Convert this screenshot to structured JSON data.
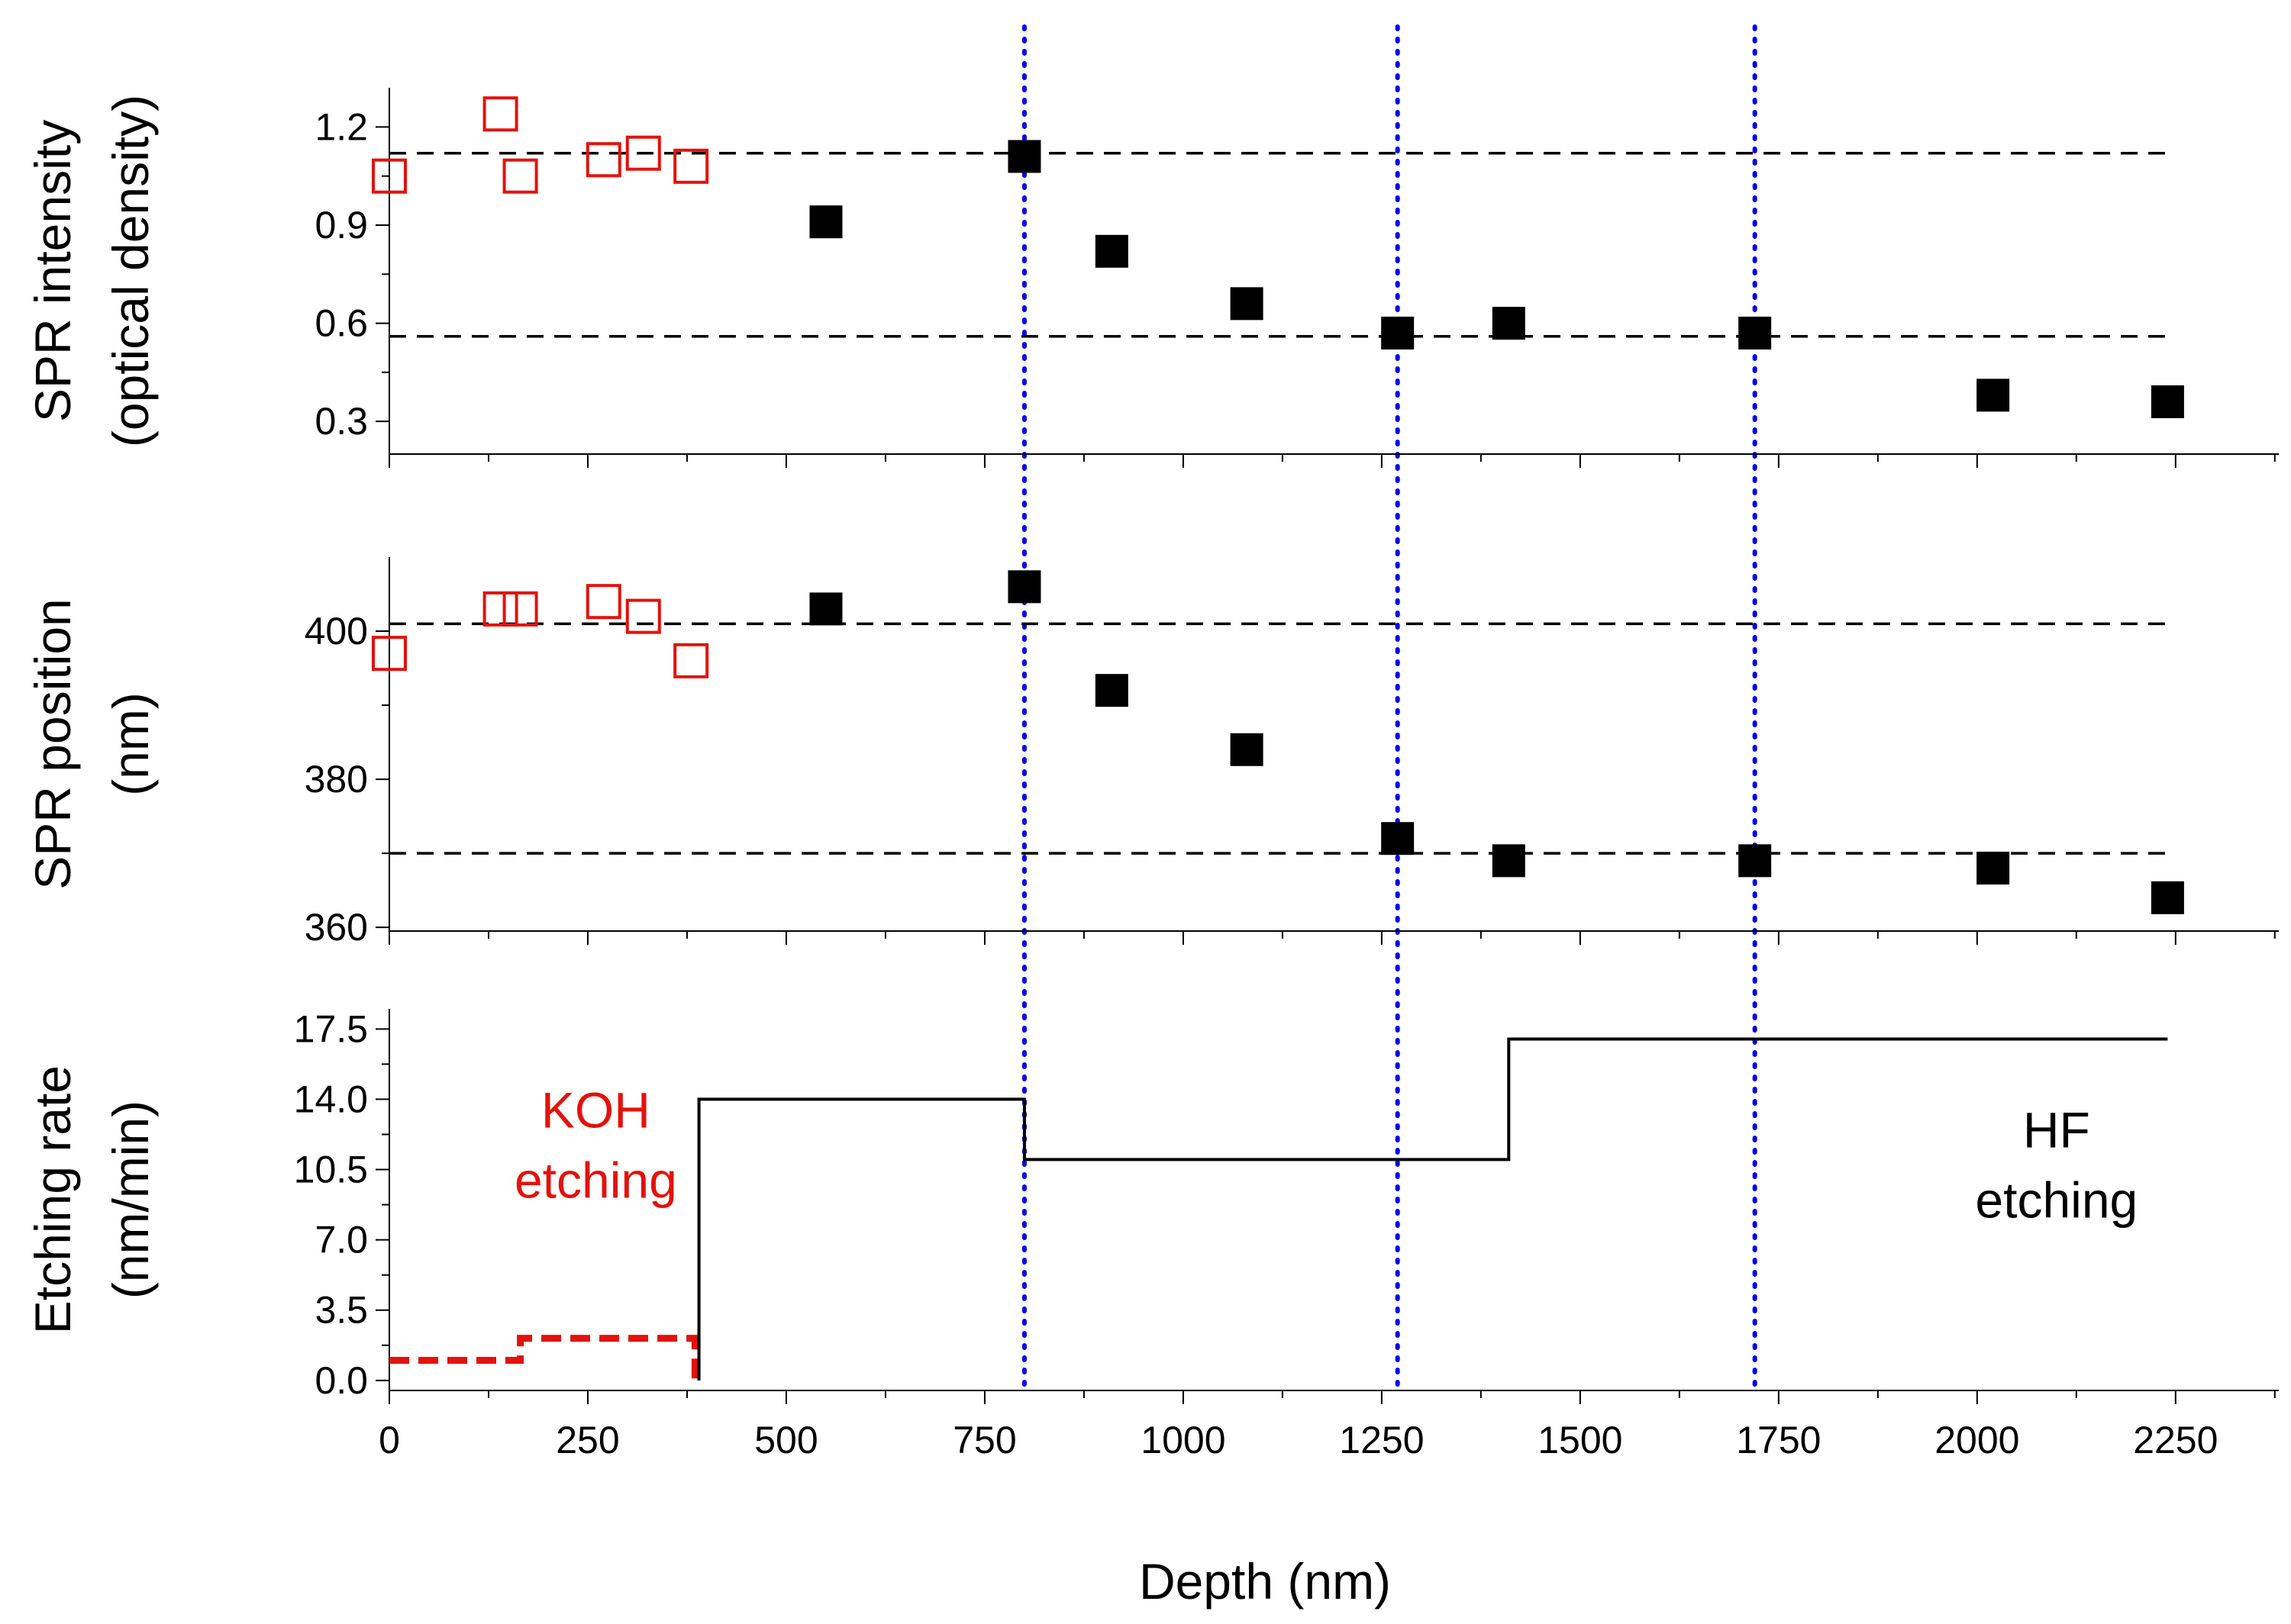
{
  "chart_data": {
    "type": "scatter",
    "xlabel": "Depth (nm)",
    "xlim": [
      0,
      2380
    ],
    "xticks": [
      0,
      250,
      500,
      750,
      1000,
      1250,
      1500,
      1750,
      2000,
      2250
    ],
    "xtick_labels": [
      "0",
      "250",
      "500",
      "750",
      "1000",
      "1250",
      "1500",
      "1750",
      "2000",
      "2250"
    ],
    "vertical_lines": [
      800,
      1270,
      1720
    ],
    "colors": {
      "koh": "#e3120b",
      "hf": "#000000",
      "vline": "#0000ee",
      "ref": "#000000"
    },
    "panels": [
      {
        "id": "intensity",
        "type": "scatter",
        "ylabel": [
          "SPR intensity",
          "(optical density)"
        ],
        "ylim": [
          0.2,
          1.32
        ],
        "yticks": [
          0.3,
          0.6,
          0.9,
          1.2
        ],
        "ytick_labels": [
          "0.3",
          "0.6",
          "0.9",
          "1.2"
        ],
        "ref_lines": [
          1.12,
          0.56
        ],
        "series": [
          {
            "name": "KOH etching",
            "marker": "open-square",
            "color": "#e3120b",
            "x": [
              0,
              140,
              165,
              270,
              320,
              380
            ],
            "y": [
              1.05,
              1.24,
              1.05,
              1.1,
              1.12,
              1.08
            ]
          },
          {
            "name": "HF etching",
            "marker": "filled-square",
            "color": "#000000",
            "x": [
              550,
              800,
              910,
              1080,
              1270,
              1410,
              1720,
              2020,
              2240
            ],
            "y": [
              0.91,
              1.11,
              0.82,
              0.66,
              0.57,
              0.6,
              0.57,
              0.38,
              0.36
            ]
          }
        ]
      },
      {
        "id": "position",
        "type": "scatter",
        "ylabel": [
          "SPR position",
          "(nm)"
        ],
        "ylim": [
          359.5,
          410
        ],
        "yticks": [
          360,
          380,
          400
        ],
        "ytick_labels": [
          "360",
          "380",
          "400"
        ],
        "ref_lines": [
          401,
          370
        ],
        "series": [
          {
            "name": "KOH etching",
            "marker": "open-square",
            "color": "#e3120b",
            "x": [
              0,
              140,
              165,
              270,
              320,
              380
            ],
            "y": [
              397,
              403,
              403,
              404,
              402,
              396
            ]
          },
          {
            "name": "HF etching",
            "marker": "filled-square",
            "color": "#000000",
            "x": [
              550,
              800,
              910,
              1080,
              1270,
              1410,
              1720,
              2020,
              2240
            ],
            "y": [
              403,
              406,
              392,
              384,
              372,
              369,
              369,
              368,
              364
            ]
          }
        ]
      },
      {
        "id": "rate",
        "type": "line",
        "ylabel": [
          "Etching rate",
          "(nm/min)"
        ],
        "ylim": [
          -0.5,
          18.5
        ],
        "yticks": [
          0,
          3.5,
          7,
          10.5,
          14,
          17.5
        ],
        "ytick_labels": [
          "0.0",
          "3.5",
          "7.0",
          "10.5",
          "14.0",
          "17.5"
        ],
        "series": [
          {
            "name": "KOH etching",
            "style": "dashed-step",
            "color": "#e3120b",
            "x": [
              0,
              165,
              165,
              385,
              385
            ],
            "y": [
              1.0,
              1.0,
              2.1,
              2.1,
              0
            ]
          },
          {
            "name": "HF etching",
            "style": "solid-step",
            "color": "#000000",
            "x": [
              390,
              390,
              800,
              800,
              1410,
              1410,
              2240
            ],
            "y": [
              0,
              14.0,
              14.0,
              11.0,
              11.0,
              17.0,
              17.0
            ]
          }
        ],
        "annotations": [
          {
            "lines": [
              "KOH",
              "etching"
            ],
            "color": "#e3120b",
            "x": 260,
            "y": 12.6
          },
          {
            "lines": [
              "HF",
              "etching"
            ],
            "color": "#000000",
            "x": 2100,
            "y": 11.6
          }
        ]
      }
    ]
  }
}
